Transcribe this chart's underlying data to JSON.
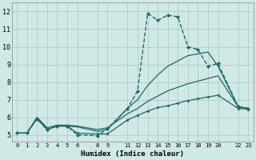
{
  "bg_color": "#d0e8e6",
  "grid_color": "#b0cccb",
  "line_color": "#1a6b68",
  "xlabel": "Humidex (Indice chaleur)",
  "xticks": [
    0,
    1,
    2,
    3,
    4,
    5,
    6,
    8,
    9,
    11,
    12,
    13,
    14,
    15,
    16,
    17,
    18,
    19,
    20,
    22,
    23
  ],
  "yticks": [
    5,
    6,
    7,
    8,
    9,
    10,
    11,
    12
  ],
  "xlim": [
    -0.5,
    23.5
  ],
  "ylim": [
    4.6,
    12.5
  ],
  "series": [
    {
      "x": [
        0,
        1,
        2,
        3,
        4,
        5,
        6,
        8,
        9,
        11,
        12,
        13,
        14,
        15,
        16,
        17,
        18,
        19,
        20,
        22,
        23
      ],
      "y": [
        5.1,
        5.1,
        5.9,
        5.3,
        5.5,
        5.5,
        5.0,
        4.95,
        5.35,
        6.5,
        7.5,
        11.9,
        11.5,
        11.8,
        11.7,
        10.0,
        9.85,
        8.9,
        9.05,
        6.6,
        6.5
      ],
      "marker": "D",
      "markersize": 2.0,
      "linewidth": 1.0,
      "linestyle": "--"
    },
    {
      "x": [
        0,
        1,
        2,
        3,
        4,
        5,
        6,
        8,
        9,
        11,
        12,
        13,
        14,
        15,
        16,
        17,
        18,
        19,
        20,
        22,
        23
      ],
      "y": [
        5.1,
        5.1,
        5.95,
        5.3,
        5.5,
        5.5,
        5.45,
        5.2,
        5.3,
        6.5,
        7.0,
        7.8,
        8.4,
        8.9,
        9.2,
        9.5,
        9.6,
        9.7,
        8.9,
        6.6,
        6.5
      ],
      "marker": null,
      "linewidth": 0.9,
      "linestyle": "-"
    },
    {
      "x": [
        0,
        1,
        2,
        3,
        4,
        5,
        6,
        8,
        9,
        11,
        12,
        13,
        14,
        15,
        16,
        17,
        18,
        19,
        20,
        22,
        23
      ],
      "y": [
        5.1,
        5.1,
        6.0,
        5.4,
        5.55,
        5.55,
        5.5,
        5.3,
        5.4,
        6.2,
        6.5,
        6.9,
        7.2,
        7.5,
        7.7,
        7.9,
        8.05,
        8.2,
        8.35,
        6.6,
        6.5
      ],
      "marker": null,
      "linewidth": 0.9,
      "linestyle": "-"
    },
    {
      "x": [
        0,
        1,
        2,
        3,
        4,
        5,
        6,
        8,
        9,
        11,
        12,
        13,
        14,
        15,
        16,
        17,
        18,
        19,
        20,
        22,
        23
      ],
      "y": [
        5.1,
        5.1,
        5.95,
        5.3,
        5.5,
        5.5,
        5.1,
        5.05,
        5.05,
        5.85,
        6.1,
        6.35,
        6.55,
        6.65,
        6.8,
        6.95,
        7.05,
        7.15,
        7.25,
        6.5,
        6.45
      ],
      "marker": "D",
      "markersize": 1.5,
      "linewidth": 0.9,
      "linestyle": "-"
    }
  ]
}
